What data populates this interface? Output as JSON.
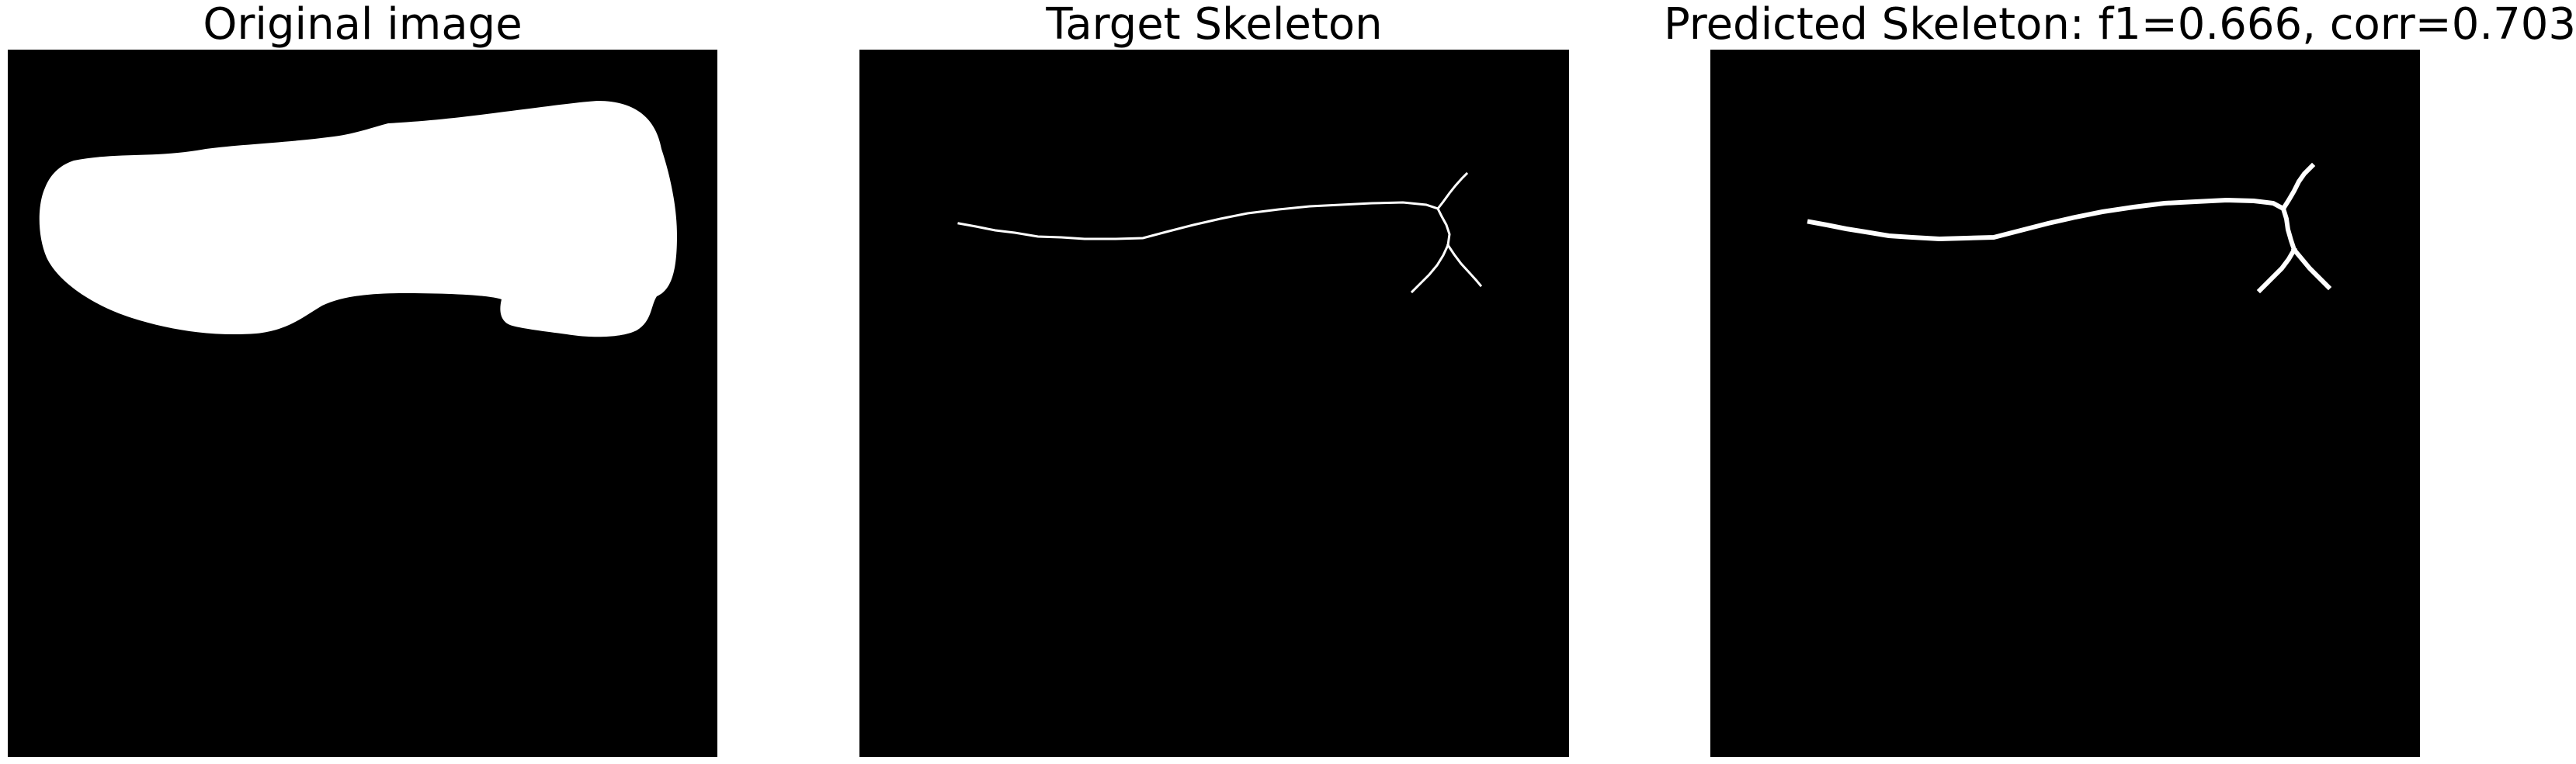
{
  "figure": {
    "panels": [
      {
        "title": "Original image",
        "content": "binary-mask",
        "background": "#000000",
        "foreground": "#ffffff"
      },
      {
        "title": "Target Skeleton",
        "content": "thin-skeleton",
        "background": "#000000",
        "foreground": "#ffffff"
      },
      {
        "title": "Predicted Skeleton: f1=0.666, corr=0.703",
        "content": "thick-skeleton",
        "background": "#000000",
        "foreground": "#ffffff",
        "metrics": {
          "f1": 0.666,
          "corr": 0.703
        }
      }
    ]
  }
}
